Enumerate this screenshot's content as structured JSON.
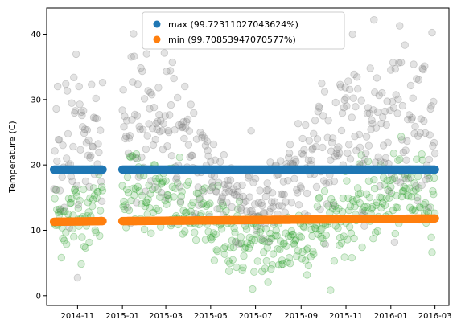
{
  "chart_data": {
    "type": "scatter",
    "title": "",
    "xlabel": "",
    "ylabel": "Temperature (C)",
    "xlim": [
      "2014-09-20",
      "2016-03-20"
    ],
    "ylim": [
      -1.5,
      44
    ],
    "x_ticks": [
      "2014-11",
      "2015-01",
      "2015-03",
      "2015-05",
      "2015-07",
      "2015-09",
      "2015-11",
      "2016-01",
      "2016-03"
    ],
    "x_tick_dates": [
      "2014-11-01",
      "2015-01-01",
      "2015-03-01",
      "2015-05-01",
      "2015-07-01",
      "2015-09-01",
      "2015-11-01",
      "2016-01-01",
      "2016-03-01"
    ],
    "y_ticks": [
      0,
      10,
      20,
      30,
      40
    ],
    "grid": false,
    "legend_position": "top-center",
    "date_ranges": [
      {
        "start": "2014-09-30",
        "end": "2014-12-05"
      },
      {
        "start": "2015-01-01",
        "end": "2016-03-01"
      }
    ],
    "series": [
      {
        "name": "max (99.72311027043624%)",
        "color": "#1f77b4",
        "role": "fitted_max",
        "segments": [
          {
            "start": "2014-09-30",
            "end": "2014-12-05",
            "value": 19.3
          },
          {
            "start": "2015-01-01",
            "end": "2016-03-01",
            "value": 19.3
          }
        ]
      },
      {
        "name": "min (99.70853947070577%)",
        "color": "#ff7f0e",
        "role": "fitted_min",
        "segments": [
          {
            "start": "2014-09-30",
            "end": "2014-12-05",
            "start_value": 11.3,
            "end_value": 11.4
          },
          {
            "start": "2015-01-01",
            "end": "2016-03-01",
            "start_value": 11.4,
            "end_value": 11.8
          }
        ]
      },
      {
        "color": "#808080",
        "role": "observed_max",
        "seasonal_profile": [
          {
            "month": "2014-10",
            "mean": 22,
            "spread": 6
          },
          {
            "month": "2014-11",
            "mean": 24,
            "spread": 6
          },
          {
            "month": "2015-01",
            "mean": 27,
            "spread": 6
          },
          {
            "month": "2015-03",
            "mean": 24,
            "spread": 5
          },
          {
            "month": "2015-05",
            "mean": 17,
            "spread": 4
          },
          {
            "month": "2015-07",
            "mean": 13,
            "spread": 3
          },
          {
            "month": "2015-09",
            "mean": 20,
            "spread": 5
          },
          {
            "month": "2015-11",
            "mean": 26,
            "spread": 6
          },
          {
            "month": "2016-01",
            "mean": 28,
            "spread": 7
          },
          {
            "month": "2016-03",
            "mean": 24,
            "spread": 6
          }
        ]
      },
      {
        "color": "#2ca02c",
        "role": "observed_min",
        "seasonal_profile": [
          {
            "month": "2014-10",
            "mean": 12,
            "spread": 3
          },
          {
            "month": "2014-11",
            "mean": 13,
            "spread": 3
          },
          {
            "month": "2015-01",
            "mean": 17,
            "spread": 3
          },
          {
            "month": "2015-03",
            "mean": 14,
            "spread": 3
          },
          {
            "month": "2015-05",
            "mean": 10,
            "spread": 3
          },
          {
            "month": "2015-07",
            "mean": 7,
            "spread": 3
          },
          {
            "month": "2015-09",
            "mean": 10,
            "spread": 3
          },
          {
            "month": "2015-11",
            "mean": 13,
            "spread": 3
          },
          {
            "month": "2016-01",
            "mean": 16,
            "spread": 3
          },
          {
            "month": "2016-03",
            "mean": 15,
            "spread": 3
          }
        ]
      }
    ]
  }
}
